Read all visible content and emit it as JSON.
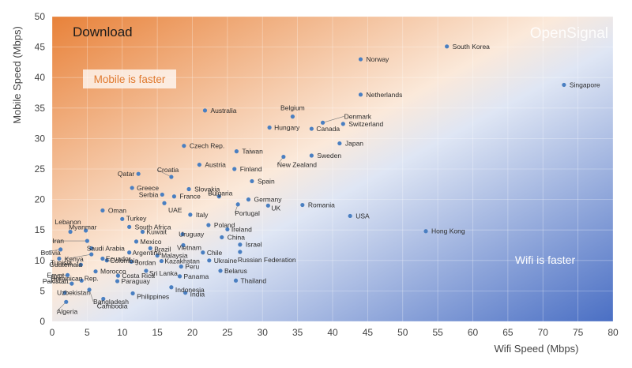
{
  "chart_data": {
    "type": "scatter",
    "title": "Download",
    "watermark": "OpenSignal",
    "xlabel": "Wifi Speed (Mbps)",
    "ylabel": "Mobile Speed (Mbps)",
    "xlim": [
      0,
      80
    ],
    "ylim": [
      0,
      50
    ],
    "xticks": [
      "0",
      "5",
      "10",
      "15",
      "20",
      "25",
      "30",
      "35",
      "40",
      "45",
      "50",
      "55",
      "60",
      "65",
      "70",
      "75",
      "80"
    ],
    "yticks": [
      "0",
      "5",
      "10",
      "15",
      "20",
      "25",
      "30",
      "35",
      "40",
      "45",
      "50"
    ],
    "grid": "both",
    "annotations": {
      "mobile_faster": "Mobile is faster",
      "wifi_faster": "Wifi is faster"
    },
    "colors": {
      "point": "#4a7fc1",
      "mobile_zone": "#e8823a",
      "wifi_zone": "#4a6fc4",
      "mobile_text": "#e07a30",
      "wifi_text": "#ffffff"
    },
    "points": [
      {
        "name": "South Korea",
        "x": 56.3,
        "y": 45.1
      },
      {
        "name": "Norway",
        "x": 44.0,
        "y": 43.0
      },
      {
        "name": "Singapore",
        "x": 73.0,
        "y": 38.8
      },
      {
        "name": "Netherlands",
        "x": 44.0,
        "y": 37.2
      },
      {
        "name": "Australia",
        "x": 21.8,
        "y": 34.6
      },
      {
        "name": "Belgium",
        "x": 34.3,
        "y": 33.6
      },
      {
        "name": "Denmark",
        "x": 38.6,
        "y": 32.6
      },
      {
        "name": "Switzerland",
        "x": 41.5,
        "y": 32.4
      },
      {
        "name": "Hungary",
        "x": 31.0,
        "y": 31.8
      },
      {
        "name": "Canada",
        "x": 37.0,
        "y": 31.6
      },
      {
        "name": "Japan",
        "x": 41.0,
        "y": 29.2
      },
      {
        "name": "Czech Rep.",
        "x": 18.8,
        "y": 28.8
      },
      {
        "name": "Taiwan",
        "x": 26.3,
        "y": 27.9
      },
      {
        "name": "Sweden",
        "x": 37.0,
        "y": 27.2
      },
      {
        "name": "New Zealand",
        "x": 33.0,
        "y": 27.0
      },
      {
        "name": "Austria",
        "x": 21.0,
        "y": 25.7
      },
      {
        "name": "Finland",
        "x": 26.0,
        "y": 25.0
      },
      {
        "name": "Croatia",
        "x": 17.0,
        "y": 23.7
      },
      {
        "name": "Qatar",
        "x": 12.3,
        "y": 24.2
      },
      {
        "name": "Spain",
        "x": 28.5,
        "y": 23.0
      },
      {
        "name": "Greece",
        "x": 11.4,
        "y": 21.9
      },
      {
        "name": "Slovakia",
        "x": 19.5,
        "y": 21.7
      },
      {
        "name": "Serbia",
        "x": 15.7,
        "y": 20.8
      },
      {
        "name": "France",
        "x": 17.4,
        "y": 20.5
      },
      {
        "name": "Bulgaria",
        "x": 23.8,
        "y": 20.5
      },
      {
        "name": "Germany",
        "x": 28.0,
        "y": 20.0
      },
      {
        "name": "UK",
        "x": 30.8,
        "y": 19.0
      },
      {
        "name": "Romania",
        "x": 35.7,
        "y": 19.1
      },
      {
        "name": "Portugal",
        "x": 26.5,
        "y": 19.2
      },
      {
        "name": "UAE",
        "x": 16.0,
        "y": 19.4
      },
      {
        "name": "Oman",
        "x": 7.2,
        "y": 18.2
      },
      {
        "name": "Italy",
        "x": 19.7,
        "y": 17.5
      },
      {
        "name": "USA",
        "x": 42.5,
        "y": 17.3
      },
      {
        "name": "Turkey",
        "x": 10.0,
        "y": 16.8
      },
      {
        "name": "Lebanon",
        "x": 4.8,
        "y": 14.9
      },
      {
        "name": "South Africa",
        "x": 11.0,
        "y": 15.5
      },
      {
        "name": "Poland",
        "x": 22.3,
        "y": 15.8
      },
      {
        "name": "Myanmar",
        "x": 2.6,
        "y": 14.7
      },
      {
        "name": "Kuwait",
        "x": 12.9,
        "y": 14.7
      },
      {
        "name": "Ireland",
        "x": 25.0,
        "y": 15.1
      },
      {
        "name": "Uruguay",
        "x": 18.6,
        "y": 14.3
      },
      {
        "name": "Hong Kong",
        "x": 53.3,
        "y": 14.8
      },
      {
        "name": "China",
        "x": 24.2,
        "y": 13.8
      },
      {
        "name": "Iran",
        "x": 5.0,
        "y": 13.2
      },
      {
        "name": "Mexico",
        "x": 12.0,
        "y": 13.1
      },
      {
        "name": "Israel",
        "x": 26.8,
        "y": 12.6
      },
      {
        "name": "Vietnam",
        "x": 18.7,
        "y": 12.5
      },
      {
        "name": "Saudi Arabia",
        "x": 5.6,
        "y": 12.0
      },
      {
        "name": "Bolivia",
        "x": 1.2,
        "y": 11.8
      },
      {
        "name": "Brazil",
        "x": 14.0,
        "y": 12.0
      },
      {
        "name": "Chile",
        "x": 21.5,
        "y": 11.3
      },
      {
        "name": "Argentina",
        "x": 11.0,
        "y": 11.3
      },
      {
        "name": "Kenya",
        "x": 5.6,
        "y": 11.0
      },
      {
        "name": "Malaysia",
        "x": 15.0,
        "y": 10.8
      },
      {
        "name": "Russian Federation",
        "x": 26.8,
        "y": 11.4
      },
      {
        "name": "Tunisia",
        "x": 1.0,
        "y": 10.3
      },
      {
        "name": "Ecuador",
        "x": 7.2,
        "y": 10.3
      },
      {
        "name": "Colombia",
        "x": 7.8,
        "y": 10.0
      },
      {
        "name": "Ukraine",
        "x": 22.4,
        "y": 10.0
      },
      {
        "name": "Jordan",
        "x": 11.3,
        "y": 9.8
      },
      {
        "name": "Kazakhstan",
        "x": 15.6,
        "y": 9.9
      },
      {
        "name": "Guatemala",
        "x": 4.1,
        "y": 9.3
      },
      {
        "name": "Peru",
        "x": 18.4,
        "y": 9.0
      },
      {
        "name": "Morocco",
        "x": 6.2,
        "y": 8.2
      },
      {
        "name": "Belarus",
        "x": 24.0,
        "y": 8.3
      },
      {
        "name": "Sri Lanka",
        "x": 13.4,
        "y": 8.3
      },
      {
        "name": "Egypt",
        "x": 2.2,
        "y": 7.6
      },
      {
        "name": "Costa Rica",
        "x": 9.4,
        "y": 7.5
      },
      {
        "name": "Panama",
        "x": 18.2,
        "y": 7.4
      },
      {
        "name": "Thailand",
        "x": 26.2,
        "y": 6.7
      },
      {
        "name": "Dominican Rep.",
        "x": 4.2,
        "y": 6.7
      },
      {
        "name": "Paraguay",
        "x": 9.3,
        "y": 6.6
      },
      {
        "name": "Pakistan",
        "x": 2.8,
        "y": 6.2
      },
      {
        "name": "Indonesia",
        "x": 17.0,
        "y": 5.6
      },
      {
        "name": "Uzbekistan",
        "x": 1.8,
        "y": 4.7
      },
      {
        "name": "Philippines",
        "x": 11.5,
        "y": 4.6
      },
      {
        "name": "India",
        "x": 19.0,
        "y": 4.7
      },
      {
        "name": "Cambodia",
        "x": 7.3,
        "y": 3.7
      },
      {
        "name": "Algeria",
        "x": 2.0,
        "y": 3.2
      },
      {
        "name": "Bangladesh",
        "x": 5.3,
        "y": 5.2
      }
    ]
  }
}
